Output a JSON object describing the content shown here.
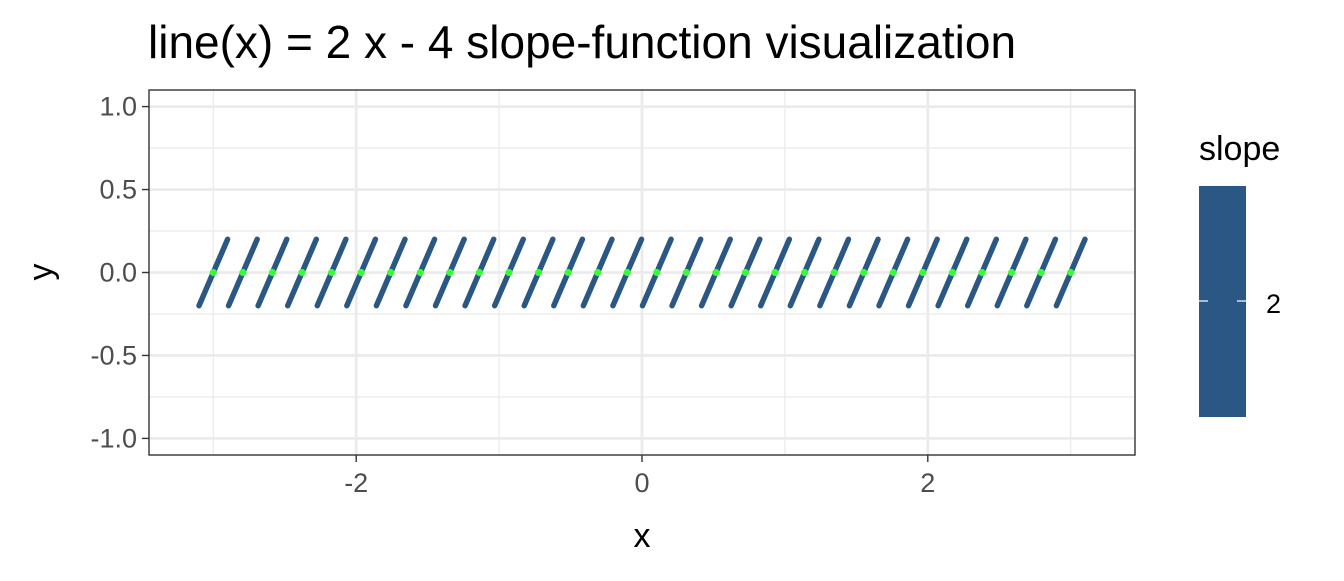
{
  "chart_data": {
    "type": "line",
    "title": "line(x) = 2 x - 4 slope-function visualization",
    "xlabel": "x",
    "ylabel": "y",
    "xlim": [
      -3.45,
      3.45
    ],
    "ylim": [
      -1.1,
      1.1
    ],
    "x_ticks": [
      {
        "value": -2,
        "label": "-2"
      },
      {
        "value": 0,
        "label": "0"
      },
      {
        "value": 2,
        "label": "2"
      }
    ],
    "y_ticks": [
      {
        "value": 1.0,
        "label": "1.0"
      },
      {
        "value": 0.5,
        "label": "0.5"
      },
      {
        "value": 0.0,
        "label": "0.0"
      },
      {
        "value": -0.5,
        "label": "-0.5"
      },
      {
        "value": -1.0,
        "label": "-1.0"
      }
    ],
    "grid": true,
    "segments": {
      "slope": 2,
      "x_start": -3.0,
      "x_end": 3.0,
      "count": 30,
      "y_center": 0.0,
      "half_dx": 0.1,
      "color": "#2a5783",
      "point_color": "#33ff33"
    },
    "legend": {
      "title": "slope",
      "label": "2",
      "placement": "right",
      "color": "#2a5783"
    },
    "colors": {
      "panel_border": "#333333",
      "grid_major": "#ebebeb",
      "grid_minor": "#f3f3f3",
      "tick_text": "#4d4d4d",
      "title_text": "#000000"
    }
  }
}
